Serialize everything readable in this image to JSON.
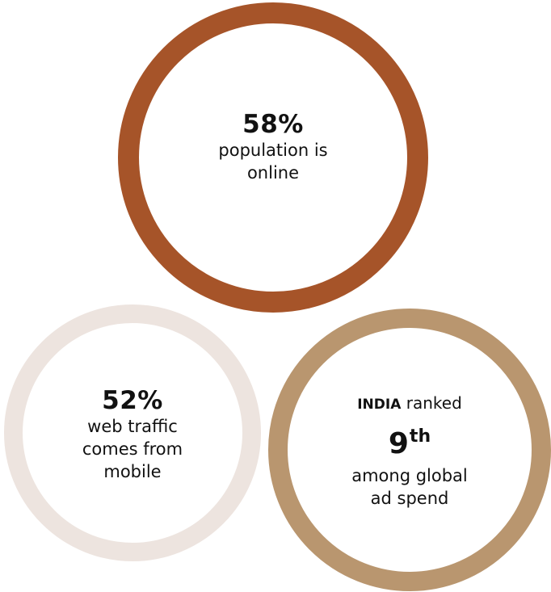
{
  "stats": {
    "online": {
      "value": "58%",
      "caption_line1": "population is",
      "caption_line2": "online",
      "ring_color": "#a65429"
    },
    "mobile": {
      "value": "52%",
      "caption_line1": "web traffic",
      "caption_line2": "comes from",
      "caption_line3": "mobile",
      "ring_color": "#ede4df"
    },
    "adspend": {
      "country": "INDIA",
      "ranked_text": "ranked",
      "rank_number": "9",
      "rank_suffix": "th",
      "caption_line1": "among global",
      "caption_line2": "ad spend",
      "ring_color": "#b9966f"
    }
  }
}
